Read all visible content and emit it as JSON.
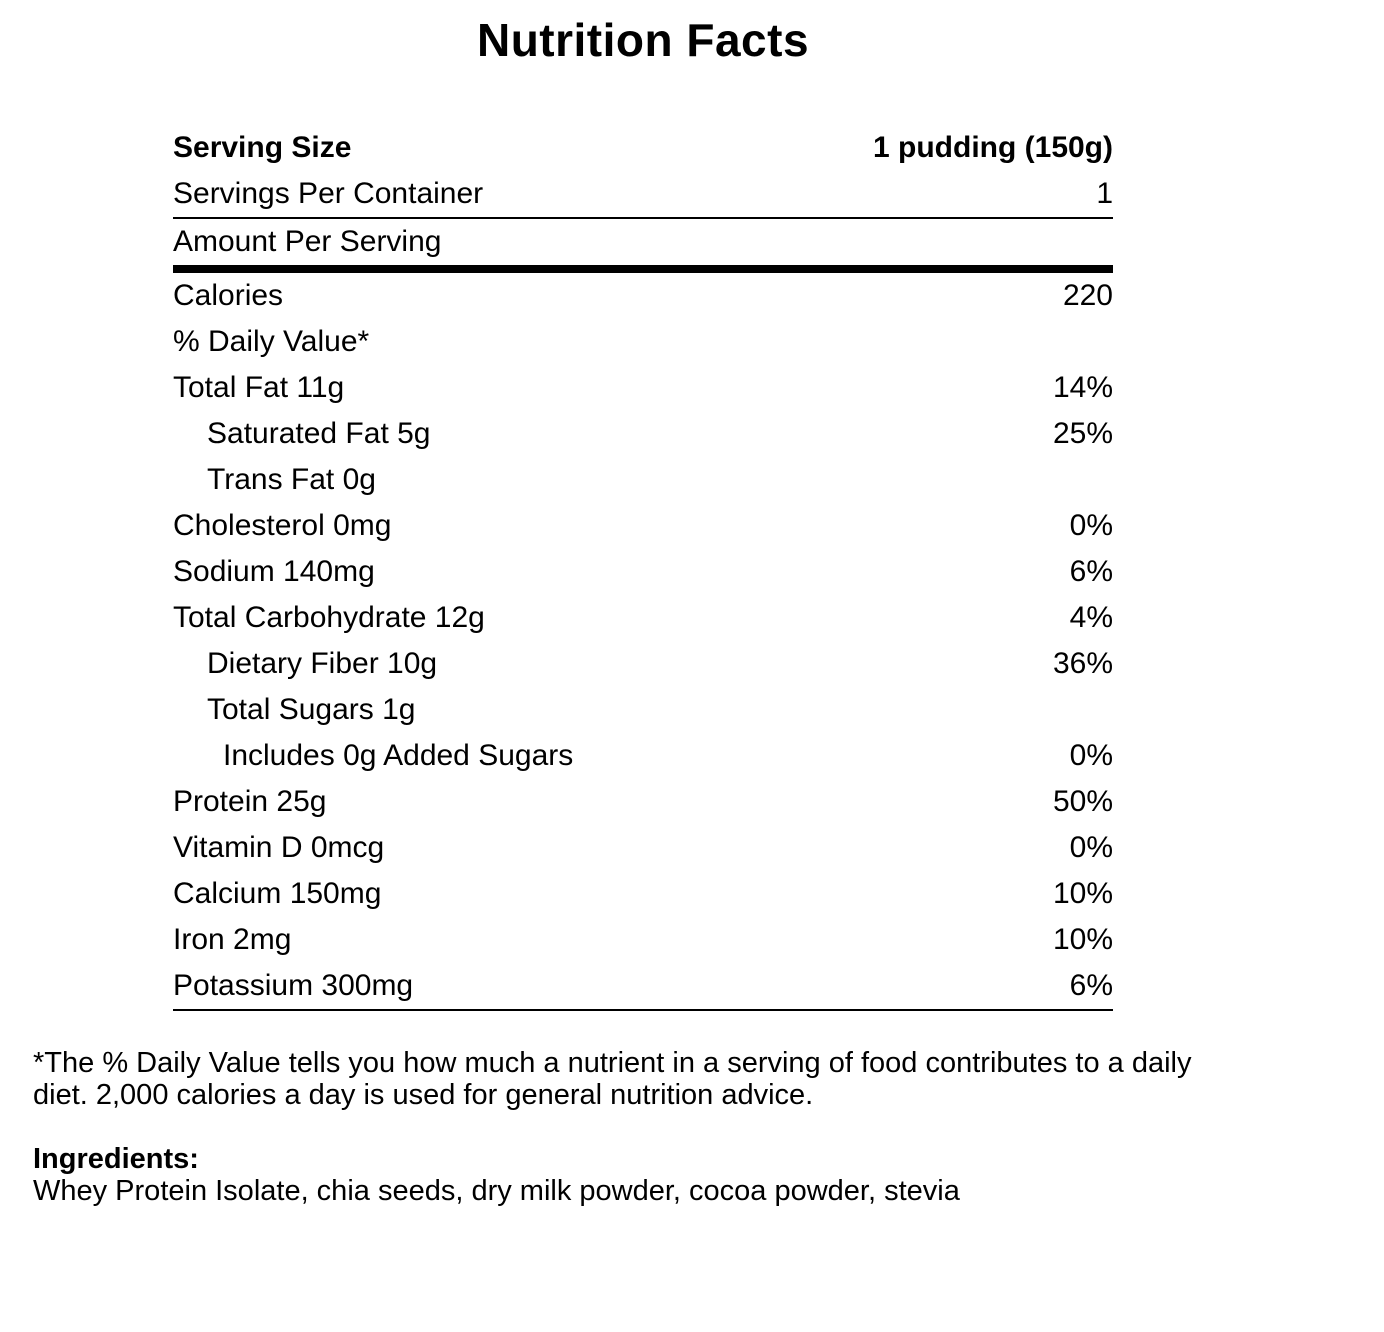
{
  "title": "Nutrition Facts",
  "colors": {
    "text": "#000000",
    "background": "#ffffff"
  },
  "label": {
    "rows": [
      {
        "name": "Serving Size",
        "value": "1 pudding (150g)",
        "indent": 0
      },
      {
        "name": "Servings Per Container",
        "value": "1",
        "indent": 0
      },
      {
        "name": "Amount Per Serving",
        "value": "",
        "indent": 0
      },
      {
        "name": "Calories",
        "value": "220",
        "indent": 0
      },
      {
        "name": "% Daily Value*",
        "value": "",
        "indent": 0
      },
      {
        "name": "Total Fat 11g",
        "value": "14%",
        "indent": 0
      },
      {
        "name": "Saturated Fat 5g",
        "value": "25%",
        "indent": 1
      },
      {
        "name": "Trans Fat 0g",
        "value": "",
        "indent": 1
      },
      {
        "name": "Cholesterol 0mg",
        "value": "0%",
        "indent": 0
      },
      {
        "name": "Sodium 140mg",
        "value": "6%",
        "indent": 0
      },
      {
        "name": "Total Carbohydrate 12g",
        "value": "4%",
        "indent": 0
      },
      {
        "name": "Dietary Fiber 10g",
        "value": "36%",
        "indent": 1
      },
      {
        "name": "Total Sugars 1g",
        "value": "",
        "indent": 1
      },
      {
        "name": "Includes 0g Added Sugars",
        "value": "0%",
        "indent": 2
      },
      {
        "name": "Protein 25g",
        "value": "50%",
        "indent": 0
      },
      {
        "name": "Vitamin D 0mcg",
        "value": "0%",
        "indent": 0
      },
      {
        "name": "Calcium 150mg",
        "value": "10%",
        "indent": 0
      },
      {
        "name": "Iron 2mg",
        "value": "10%",
        "indent": 0
      },
      {
        "name": "Potassium 300mg",
        "value": "6%",
        "indent": 0
      }
    ]
  },
  "footnote": "*The % Daily Value tells you how much a nutrient in a serving of food contributes to a daily diet. 2,000 calories a day is used for general nutrition advice.",
  "ingredients": {
    "heading": "Ingredients:",
    "text": "Whey Protein Isolate, chia seeds, dry milk powder, cocoa powder, stevia"
  }
}
